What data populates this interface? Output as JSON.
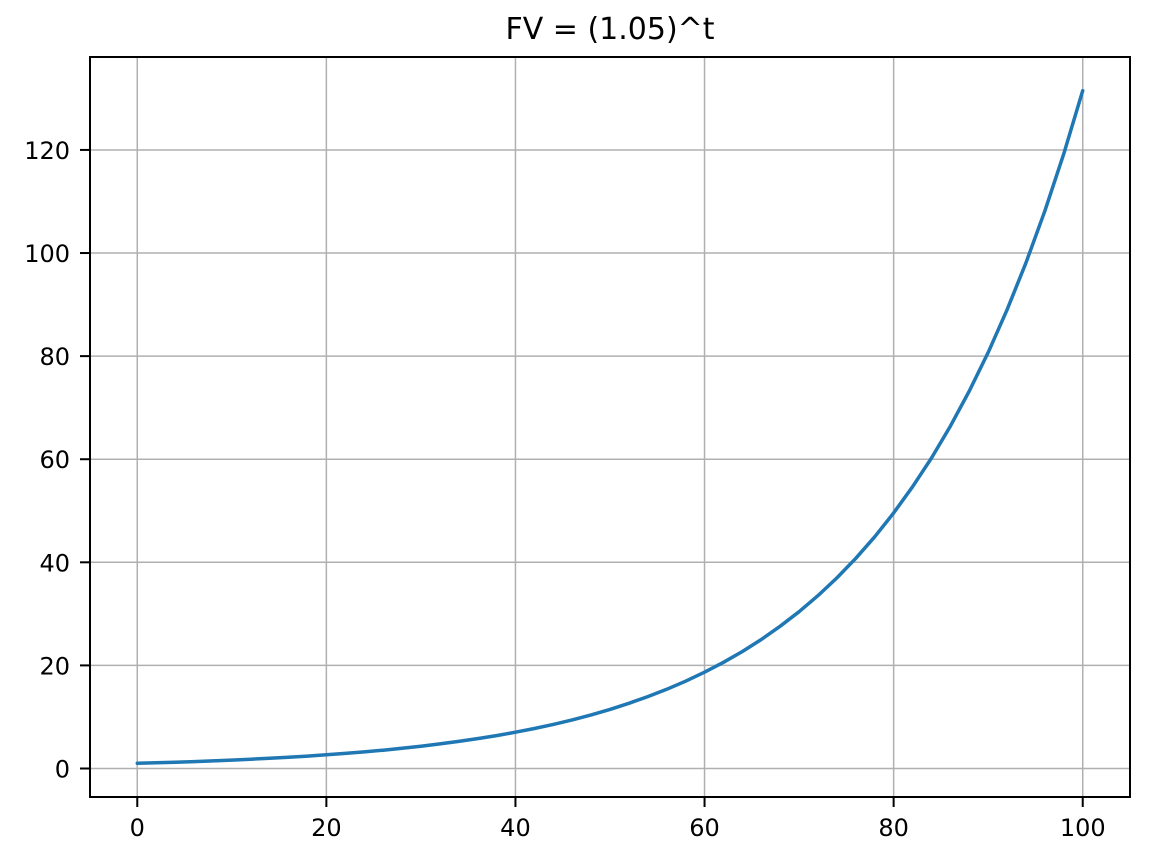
{
  "figure": {
    "background": "#ffffff"
  },
  "chart_data": {
    "type": "line",
    "title": "FV = (1.05)^t",
    "xlabel": "",
    "ylabel": "",
    "xlim": [
      -5,
      105
    ],
    "ylim": [
      -5.53,
      138.03
    ],
    "xticks": [
      0,
      20,
      40,
      60,
      80,
      100
    ],
    "yticks": [
      0,
      20,
      40,
      60,
      80,
      100,
      120
    ],
    "grid": true,
    "grid_color": "#b0b0b0",
    "axis_color": "#000000",
    "legend": "none",
    "series": [
      {
        "name": "FV = (1.05)^t",
        "color": "#1f77b4",
        "x": [
          0,
          2,
          4,
          6,
          8,
          10,
          12,
          14,
          16,
          18,
          20,
          22,
          24,
          26,
          28,
          30,
          32,
          34,
          36,
          38,
          40,
          42,
          44,
          46,
          48,
          50,
          52,
          54,
          56,
          58,
          60,
          62,
          64,
          66,
          68,
          70,
          72,
          74,
          76,
          78,
          80,
          82,
          84,
          86,
          88,
          90,
          92,
          94,
          96,
          98,
          100
        ],
        "y": [
          1.0,
          1.103,
          1.216,
          1.34,
          1.477,
          1.629,
          1.796,
          1.98,
          2.183,
          2.407,
          2.653,
          2.925,
          3.225,
          3.556,
          3.92,
          4.322,
          4.765,
          5.253,
          5.792,
          6.385,
          7.04,
          7.762,
          8.557,
          9.434,
          10.401,
          11.467,
          12.643,
          13.939,
          15.367,
          16.943,
          18.679,
          20.594,
          22.705,
          25.032,
          27.598,
          30.426,
          33.545,
          36.984,
          40.774,
          44.953,
          49.561,
          54.641,
          60.242,
          66.417,
          73.225,
          80.73,
          89.005,
          98.129,
          108.186,
          119.275,
          131.501
        ]
      }
    ]
  }
}
